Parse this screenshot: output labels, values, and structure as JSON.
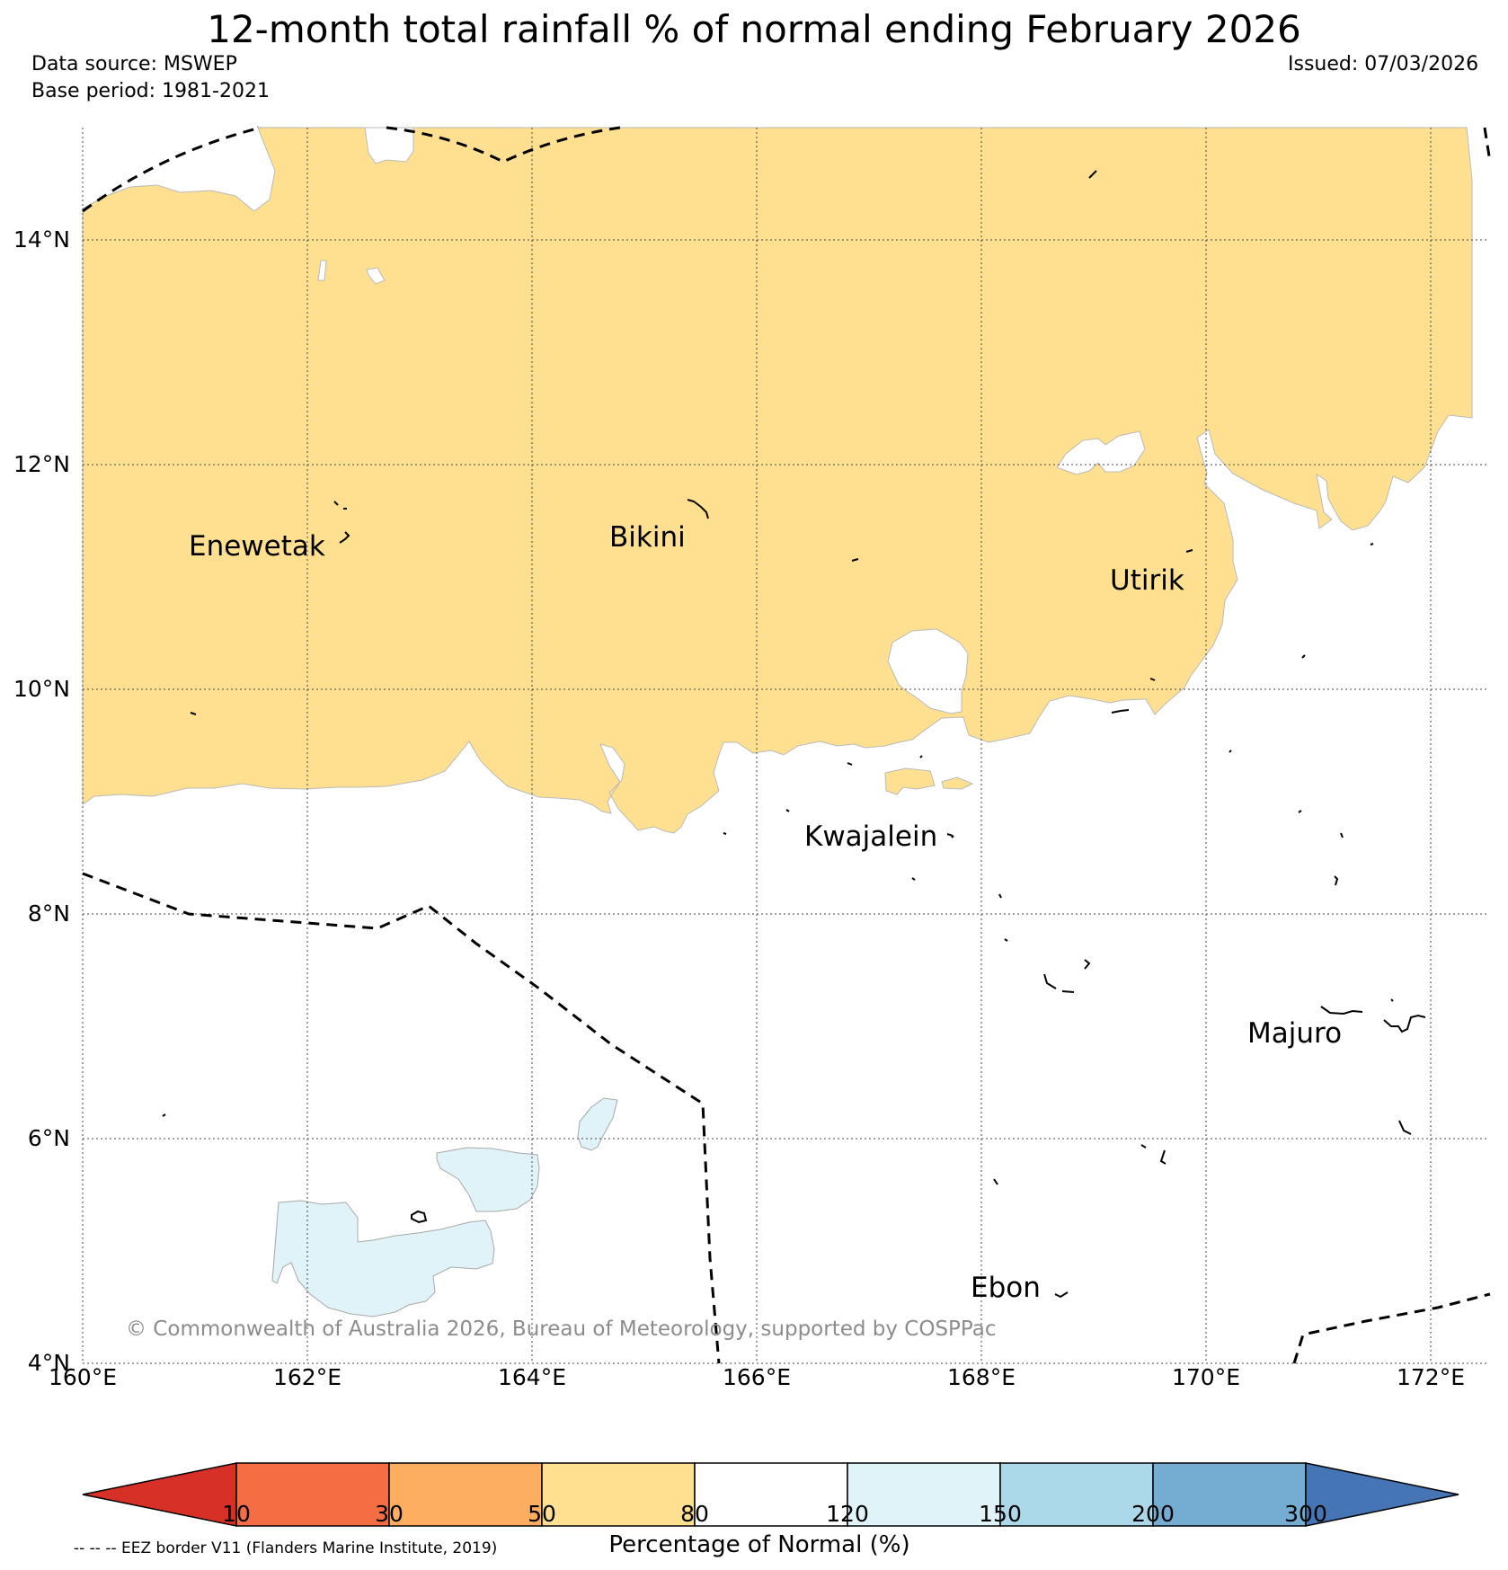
{
  "title": "12-month total rainfall % of normal ending February 2026",
  "data_source": "Data source: MSWEP",
  "base_period": "Base period: 1981-2021",
  "issued": "Issued: 07/03/2026",
  "copyright": "© Commonwealth of Australia 2026, Bureau of Meteorology, supported by COSPPac",
  "eez_note": "-- -- -- EEZ border V11 (Flanders Marine Institute, 2019)",
  "lat_labels": [
    "14°N",
    "12°N",
    "10°N",
    "8°N",
    "6°N",
    "4°N"
  ],
  "lon_labels": [
    "160°E",
    "162°E",
    "164°E",
    "166°E",
    "168°E",
    "170°E",
    "172°E"
  ],
  "islands": {
    "enewetak": "Enewetak",
    "bikini": "Bikini",
    "utirik": "Utirik",
    "kwajalein": "Kwajalein",
    "majuro": "Majuro",
    "ebon": "Ebon"
  },
  "colorbar": {
    "title": "Percentage of Normal (%)",
    "ticks": [
      "10",
      "30",
      "50",
      "80",
      "120",
      "150",
      "200",
      "300"
    ],
    "colors": [
      "#d73027",
      "#f46d43",
      "#fdae61",
      "#fee090",
      "#ffffff",
      "#e0f3f8",
      "#abd9e9",
      "#74add1",
      "#4575b4"
    ]
  },
  "fill_colors": {
    "dry": "#fee090",
    "wet": "#e0f3f8"
  }
}
